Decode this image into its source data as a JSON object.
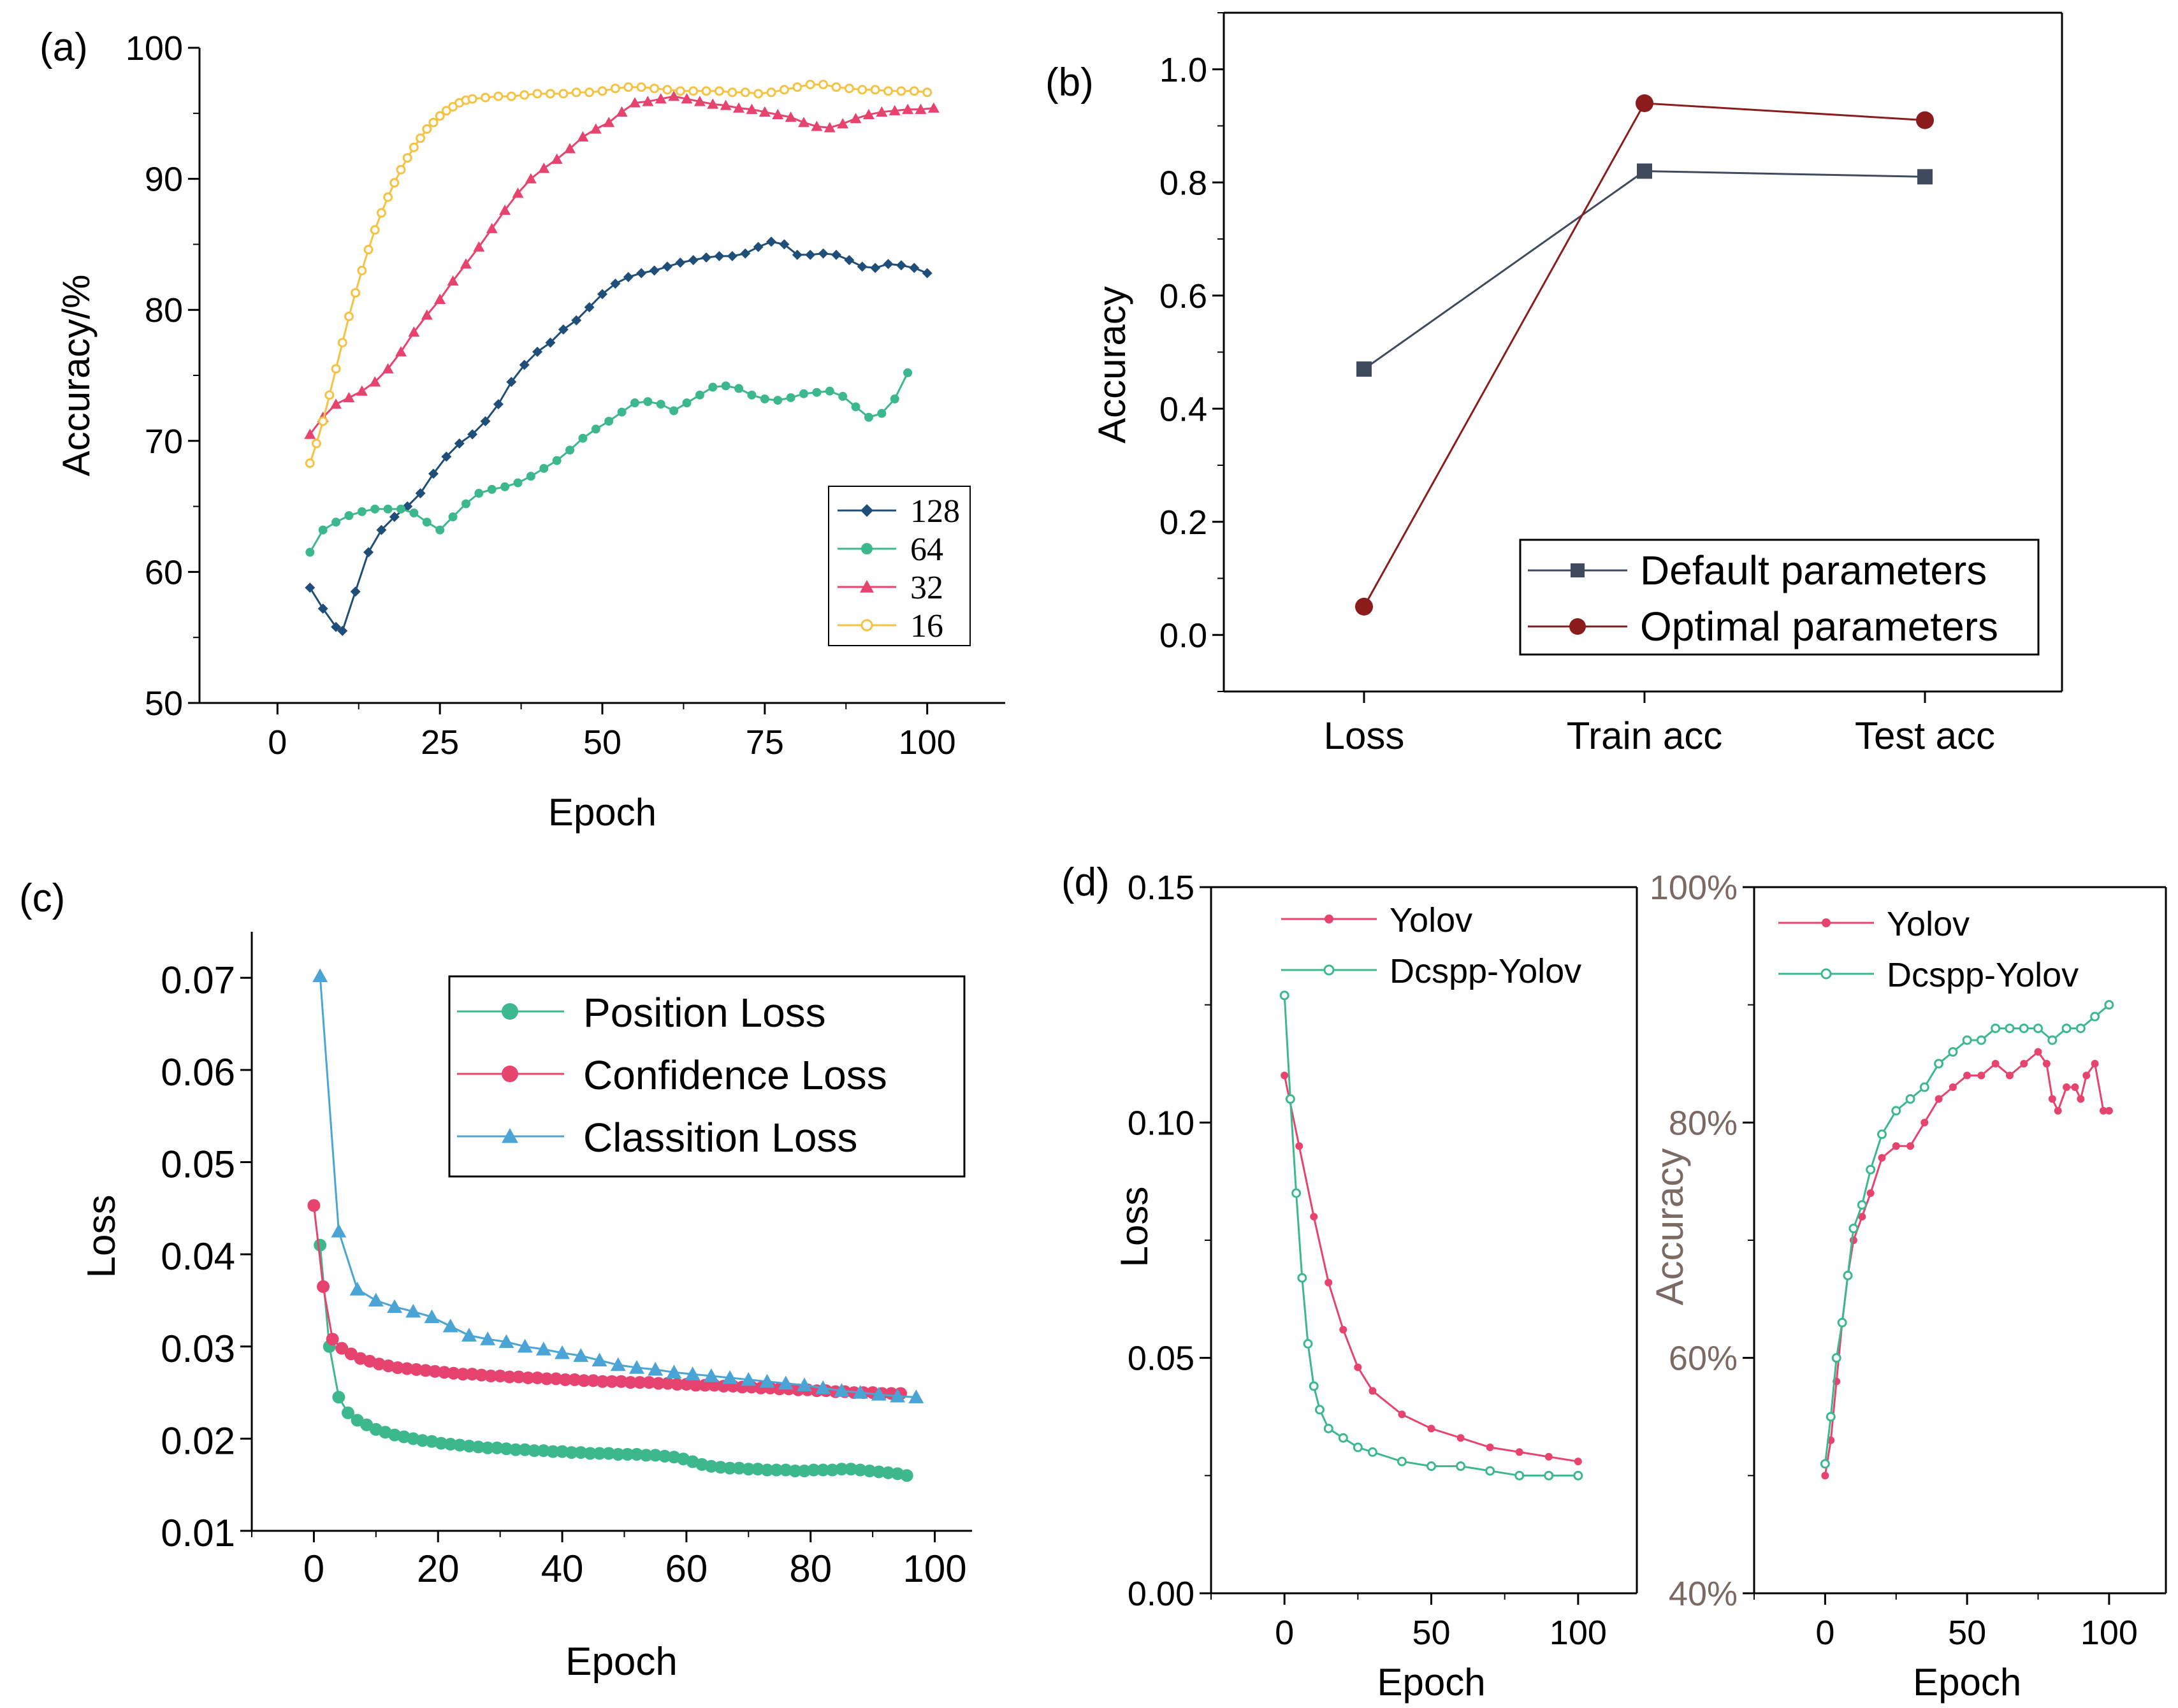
{
  "chart_data": [
    {
      "panel": "(a)",
      "type": "line",
      "xlabel": "Epoch",
      "ylabel": "Accuracy/%",
      "xlim": [
        -12,
        112
      ],
      "ylim": [
        50,
        100
      ],
      "xticks": [
        "0",
        "25",
        "50",
        "75",
        "100"
      ],
      "yticks": [
        "50",
        "60",
        "70",
        "80",
        "90",
        "100"
      ],
      "legend_position": "bottom-right",
      "series": [
        {
          "name": "128",
          "color": "#1f4e79",
          "marker": "diamond",
          "x": [
            5,
            7,
            9,
            10,
            12,
            14,
            16,
            18,
            20,
            22,
            24,
            26,
            28,
            30,
            32,
            34,
            36,
            38,
            40,
            42,
            44,
            46,
            48,
            50,
            52,
            54,
            56,
            58,
            60,
            62,
            64,
            66,
            68,
            70,
            72,
            74,
            76,
            78,
            80,
            82,
            84,
            86,
            88,
            90,
            92,
            94,
            96,
            98,
            100
          ],
          "y": [
            58.8,
            57.2,
            55.8,
            55.5,
            58.5,
            61.5,
            63.2,
            64.2,
            65.0,
            66.0,
            67.5,
            68.8,
            69.8,
            70.5,
            71.5,
            72.8,
            74.5,
            75.8,
            76.8,
            77.5,
            78.5,
            79.2,
            80.2,
            81.2,
            82.0,
            82.5,
            82.8,
            83.0,
            83.3,
            83.6,
            83.8,
            84.0,
            84.1,
            84.1,
            84.3,
            84.8,
            85.2,
            85.0,
            84.2,
            84.2,
            84.3,
            84.2,
            83.8,
            83.3,
            83.2,
            83.5,
            83.4,
            83.2,
            82.8
          ]
        },
        {
          "name": "64",
          "color": "#3db88d",
          "marker": "circle",
          "x": [
            5,
            7,
            9,
            11,
            13,
            15,
            17,
            19,
            21,
            23,
            25,
            27,
            29,
            31,
            33,
            35,
            37,
            39,
            41,
            43,
            45,
            47,
            49,
            51,
            53,
            55,
            57,
            59,
            61,
            63,
            65,
            67,
            69,
            71,
            73,
            75,
            77,
            79,
            81,
            83,
            85,
            87,
            89,
            91,
            93,
            95,
            97
          ],
          "y": [
            61.5,
            63.2,
            63.8,
            64.3,
            64.6,
            64.8,
            64.8,
            64.8,
            64.5,
            63.8,
            63.2,
            64.2,
            65.2,
            66.0,
            66.3,
            66.5,
            66.8,
            67.3,
            67.9,
            68.5,
            69.3,
            70.2,
            70.9,
            71.5,
            72.2,
            72.9,
            73.0,
            72.8,
            72.3,
            72.9,
            73.5,
            74.1,
            74.2,
            74.0,
            73.5,
            73.2,
            73.1,
            73.3,
            73.6,
            73.7,
            73.8,
            73.4,
            72.6,
            71.8,
            72.1,
            73.2,
            75.2
          ]
        },
        {
          "name": "32",
          "color": "#e6446e",
          "marker": "triangle",
          "x": [
            5,
            7,
            9,
            11,
            13,
            15,
            17,
            19,
            21,
            23,
            25,
            27,
            29,
            31,
            33,
            35,
            37,
            39,
            41,
            43,
            45,
            47,
            49,
            51,
            53,
            55,
            57,
            59,
            61,
            63,
            65,
            67,
            69,
            71,
            73,
            75,
            77,
            79,
            81,
            83,
            85,
            87,
            89,
            91,
            93,
            95,
            97,
            99,
            101
          ],
          "y": [
            70.5,
            71.8,
            72.8,
            73.3,
            73.8,
            74.5,
            75.5,
            76.8,
            78.3,
            79.6,
            80.8,
            82.2,
            83.5,
            84.8,
            86.2,
            87.6,
            88.9,
            90.0,
            90.8,
            91.5,
            92.3,
            93.2,
            93.8,
            94.3,
            95.1,
            95.8,
            95.9,
            96.1,
            96.3,
            96.1,
            95.9,
            95.7,
            95.6,
            95.4,
            95.3,
            95.1,
            94.9,
            94.7,
            94.3,
            94.0,
            93.9,
            94.2,
            94.6,
            94.9,
            95.1,
            95.2,
            95.3,
            95.3,
            95.4
          ]
        },
        {
          "name": "16",
          "color": "#f5c242",
          "marker": "circle-open",
          "x": [
            5,
            6,
            7,
            8,
            9,
            10,
            11,
            12,
            13,
            14,
            15,
            16,
            17,
            18,
            19,
            20,
            21,
            22,
            23,
            24,
            25,
            26,
            27,
            28,
            29,
            30,
            32,
            34,
            36,
            38,
            40,
            42,
            44,
            46,
            48,
            50,
            52,
            54,
            56,
            58,
            60,
            62,
            64,
            66,
            68,
            70,
            72,
            74,
            76,
            78,
            80,
            82,
            84,
            86,
            88,
            90,
            92,
            94,
            96,
            98,
            100
          ],
          "y": [
            68.3,
            69.8,
            71.5,
            73.5,
            75.5,
            77.5,
            79.5,
            81.3,
            83.0,
            84.6,
            86.1,
            87.4,
            88.6,
            89.7,
            90.7,
            91.6,
            92.4,
            93.1,
            93.8,
            94.3,
            94.8,
            95.2,
            95.5,
            95.8,
            96.0,
            96.1,
            96.2,
            96.3,
            96.3,
            96.4,
            96.5,
            96.5,
            96.5,
            96.6,
            96.6,
            96.7,
            96.9,
            97.0,
            97.0,
            96.9,
            96.8,
            96.7,
            96.7,
            96.7,
            96.7,
            96.6,
            96.6,
            96.5,
            96.6,
            96.8,
            97.0,
            97.2,
            97.2,
            97.0,
            96.9,
            96.8,
            96.8,
            96.7,
            96.7,
            96.7,
            96.6
          ]
        }
      ]
    },
    {
      "panel": "(b)",
      "type": "line",
      "xlabel": "",
      "ylabel": "Accuracy",
      "categories": [
        "Loss",
        "Train acc",
        "Test acc"
      ],
      "ylim": [
        -0.1,
        1.1
      ],
      "yticks": [
        "0.0",
        "0.2",
        "0.4",
        "0.6",
        "0.8",
        "1.0"
      ],
      "legend_position": "bottom-right",
      "series": [
        {
          "name": "Default parameters",
          "color": "#3f4a5e",
          "marker": "square",
          "values": [
            0.47,
            0.82,
            0.81
          ]
        },
        {
          "name": "Optimal parameters",
          "color": "#8b1c1c",
          "marker": "circle",
          "values": [
            0.05,
            0.94,
            0.91
          ]
        }
      ]
    },
    {
      "panel": "(c)",
      "type": "line",
      "xlabel": "Epoch",
      "ylabel": "Loss",
      "xlim": [
        -10,
        106
      ],
      "ylim": [
        0.01,
        0.075
      ],
      "xticks": [
        "0",
        "20",
        "40",
        "60",
        "80",
        "100"
      ],
      "yticks": [
        "0.01",
        "0.02",
        "0.03",
        "0.04",
        "0.05",
        "0.06",
        "0.07"
      ],
      "legend_position": "top-right",
      "series": [
        {
          "name": "Position Loss",
          "color": "#3db88d",
          "marker": "circle",
          "x0": 1,
          "step": 1.5,
          "y": [
            0.041,
            0.03,
            0.0245,
            0.0228,
            0.022,
            0.0215,
            0.021,
            0.0207,
            0.0204,
            0.0202,
            0.02,
            0.0198,
            0.0197,
            0.0195,
            0.0194,
            0.0193,
            0.0192,
            0.0191,
            0.019,
            0.019,
            0.0189,
            0.0188,
            0.0188,
            0.0187,
            0.0187,
            0.0186,
            0.0186,
            0.0185,
            0.0185,
            0.0184,
            0.0184,
            0.0184,
            0.0183,
            0.0183,
            0.0183,
            0.0182,
            0.0182,
            0.0181,
            0.018,
            0.0178,
            0.0175,
            0.0172,
            0.017,
            0.0169,
            0.0168,
            0.0168,
            0.0167,
            0.0167,
            0.0166,
            0.0166,
            0.0166,
            0.0165,
            0.0165,
            0.0166,
            0.0166,
            0.0166,
            0.0167,
            0.0167,
            0.0166,
            0.0165,
            0.0164,
            0.0163,
            0.0162,
            0.016
          ]
        },
        {
          "name": "Confidence Loss",
          "color": "#e6446e",
          "marker": "circle",
          "x0": 0,
          "step": 1.5,
          "y": [
            0.0453,
            0.0365,
            0.0308,
            0.0298,
            0.0292,
            0.0287,
            0.0284,
            0.0281,
            0.0279,
            0.0277,
            0.0276,
            0.0275,
            0.0274,
            0.0273,
            0.0272,
            0.0271,
            0.027,
            0.027,
            0.0269,
            0.0268,
            0.0268,
            0.0267,
            0.0267,
            0.0266,
            0.0266,
            0.0265,
            0.0265,
            0.0264,
            0.0264,
            0.0263,
            0.0263,
            0.0262,
            0.0262,
            0.0262,
            0.0261,
            0.0261,
            0.0261,
            0.026,
            0.026,
            0.0259,
            0.0259,
            0.0258,
            0.0258,
            0.0258,
            0.0257,
            0.0257,
            0.0256,
            0.0256,
            0.0255,
            0.0255,
            0.0254,
            0.0254,
            0.0253,
            0.0253,
            0.0252,
            0.0252,
            0.0251,
            0.0251,
            0.025,
            0.025,
            0.025,
            0.0249,
            0.0249,
            0.0249
          ]
        },
        {
          "name": "Classition Loss",
          "color": "#4aa4d6",
          "marker": "triangle",
          "x0": 1,
          "step": 3,
          "y": [
            0.0702,
            0.0425,
            0.0362,
            0.035,
            0.0343,
            0.0338,
            0.0332,
            0.0322,
            0.0312,
            0.0308,
            0.0305,
            0.03,
            0.0297,
            0.0293,
            0.029,
            0.0285,
            0.028,
            0.0277,
            0.0275,
            0.0272,
            0.027,
            0.0268,
            0.0266,
            0.0264,
            0.0262,
            0.026,
            0.0258,
            0.0255,
            0.0252,
            0.025,
            0.0248,
            0.0246,
            0.0245
          ]
        }
      ]
    },
    {
      "panel": "(d)",
      "type": "line",
      "xlabel": "Epoch",
      "ylabel": "Loss",
      "xlim": [
        -25,
        120
      ],
      "ylim": [
        0.0,
        0.15
      ],
      "xticks": [
        "0",
        "50",
        "100"
      ],
      "yticks": [
        "0.00",
        "0.05",
        "0.10",
        "0.15"
      ],
      "legend_position": "top-left",
      "series": [
        {
          "name": "Yolov",
          "color": "#e6446e",
          "marker": "circle",
          "x": [
            0,
            5,
            10,
            15,
            20,
            25,
            30,
            40,
            50,
            60,
            70,
            80,
            90,
            100
          ],
          "y": [
            0.11,
            0.095,
            0.08,
            0.066,
            0.056,
            0.048,
            0.043,
            0.038,
            0.035,
            0.033,
            0.031,
            0.03,
            0.029,
            0.028
          ]
        },
        {
          "name": "Dcspp-Yolov",
          "color": "#3db88d",
          "marker": "circle-open",
          "x": [
            0,
            2,
            4,
            6,
            8,
            10,
            12,
            15,
            20,
            25,
            30,
            40,
            50,
            60,
            70,
            80,
            90,
            100
          ],
          "y": [
            0.127,
            0.105,
            0.085,
            0.067,
            0.053,
            0.044,
            0.039,
            0.035,
            0.033,
            0.031,
            0.03,
            0.028,
            0.027,
            0.027,
            0.026,
            0.025,
            0.025,
            0.025
          ]
        }
      ]
    },
    {
      "panel": "(d)",
      "type": "line",
      "xlabel": "Epoch",
      "ylabel": "Accuracy",
      "xlim": [
        -25,
        120
      ],
      "ylim": [
        40,
        100
      ],
      "xticks": [
        "0",
        "50",
        "100"
      ],
      "yticks": [
        "40%",
        "60%",
        "80%",
        "100%"
      ],
      "legend_position": "top-left",
      "series": [
        {
          "name": "Yolov",
          "color": "#e6446e",
          "marker": "circle",
          "x": [
            0,
            2,
            4,
            6,
            8,
            10,
            13,
            16,
            20,
            25,
            30,
            35,
            40,
            45,
            50,
            55,
            60,
            65,
            70,
            75,
            78,
            80,
            82,
            85,
            88,
            90,
            92,
            95,
            98,
            100
          ],
          "y": [
            50,
            53,
            58,
            63,
            67,
            70,
            72,
            74,
            77,
            78,
            78,
            80,
            82,
            83,
            84,
            84,
            85,
            84,
            85,
            86,
            85,
            82,
            81,
            83,
            83,
            82,
            84,
            85,
            81,
            81
          ]
        },
        {
          "name": "Dcspp-Yolov",
          "color": "#3db88d",
          "marker": "circle-open",
          "x": [
            0,
            2,
            4,
            6,
            8,
            10,
            13,
            16,
            20,
            25,
            30,
            35,
            40,
            45,
            50,
            55,
            60,
            65,
            70,
            75,
            80,
            85,
            90,
            95,
            100
          ],
          "y": [
            51,
            55,
            60,
            63,
            67,
            71,
            73,
            76,
            79,
            81,
            82,
            83,
            85,
            86,
            87,
            87,
            88,
            88,
            88,
            88,
            87,
            88,
            88,
            89,
            90
          ]
        }
      ]
    }
  ],
  "panel_labels": [
    "(a)",
    "(b)",
    "(c)",
    "(d)"
  ]
}
